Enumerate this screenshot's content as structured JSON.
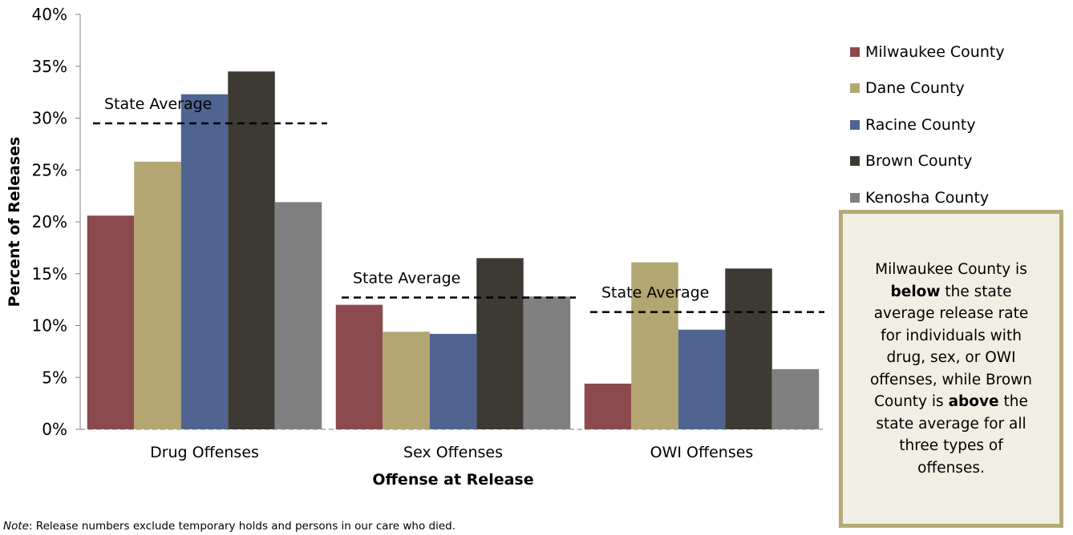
{
  "chart_data": {
    "type": "bar",
    "categories": [
      "Drug Offenses",
      "Sex Offenses",
      "OWI Offenses"
    ],
    "series": [
      {
        "name": "Milwaukee County",
        "color": "#8b4a4d",
        "values": [
          20.6,
          12.0,
          4.4
        ]
      },
      {
        "name": "Dane County",
        "color": "#b3a672",
        "values": [
          25.8,
          9.4,
          16.1
        ]
      },
      {
        "name": "Racine County",
        "color": "#4f6491",
        "values": [
          32.3,
          9.2,
          9.6
        ]
      },
      {
        "name": "Brown County",
        "color": "#3d3a33",
        "values": [
          34.5,
          16.5,
          15.5
        ]
      },
      {
        "name": "Kenosha County",
        "color": "#808080",
        "values": [
          21.9,
          12.8,
          5.8
        ]
      }
    ],
    "state_average": {
      "label": "State Average",
      "values": [
        29.5,
        12.7,
        11.3
      ]
    },
    "xlabel": "Offense at Release",
    "ylabel": "Percent of Releases",
    "ylim": [
      0,
      40
    ],
    "yticks": [
      "0%",
      "5%",
      "10%",
      "15%",
      "20%",
      "25%",
      "30%",
      "35%",
      "40%"
    ],
    "legend_position": "right",
    "grid": false
  },
  "callout": {
    "parts": [
      {
        "text": "Milwaukee County is ",
        "bold": false
      },
      {
        "text": "below",
        "bold": true
      },
      {
        "text": " the state average release rate for individuals with drug, sex, or OWI offenses, while Brown County is ",
        "bold": false
      },
      {
        "text": "above",
        "bold": true
      },
      {
        "text": " the state average for all three types of offenses.",
        "bold": false
      }
    ]
  },
  "note": {
    "prefix": "Note",
    "text": ": Release numbers exclude temporary holds and persons in our care who died."
  }
}
